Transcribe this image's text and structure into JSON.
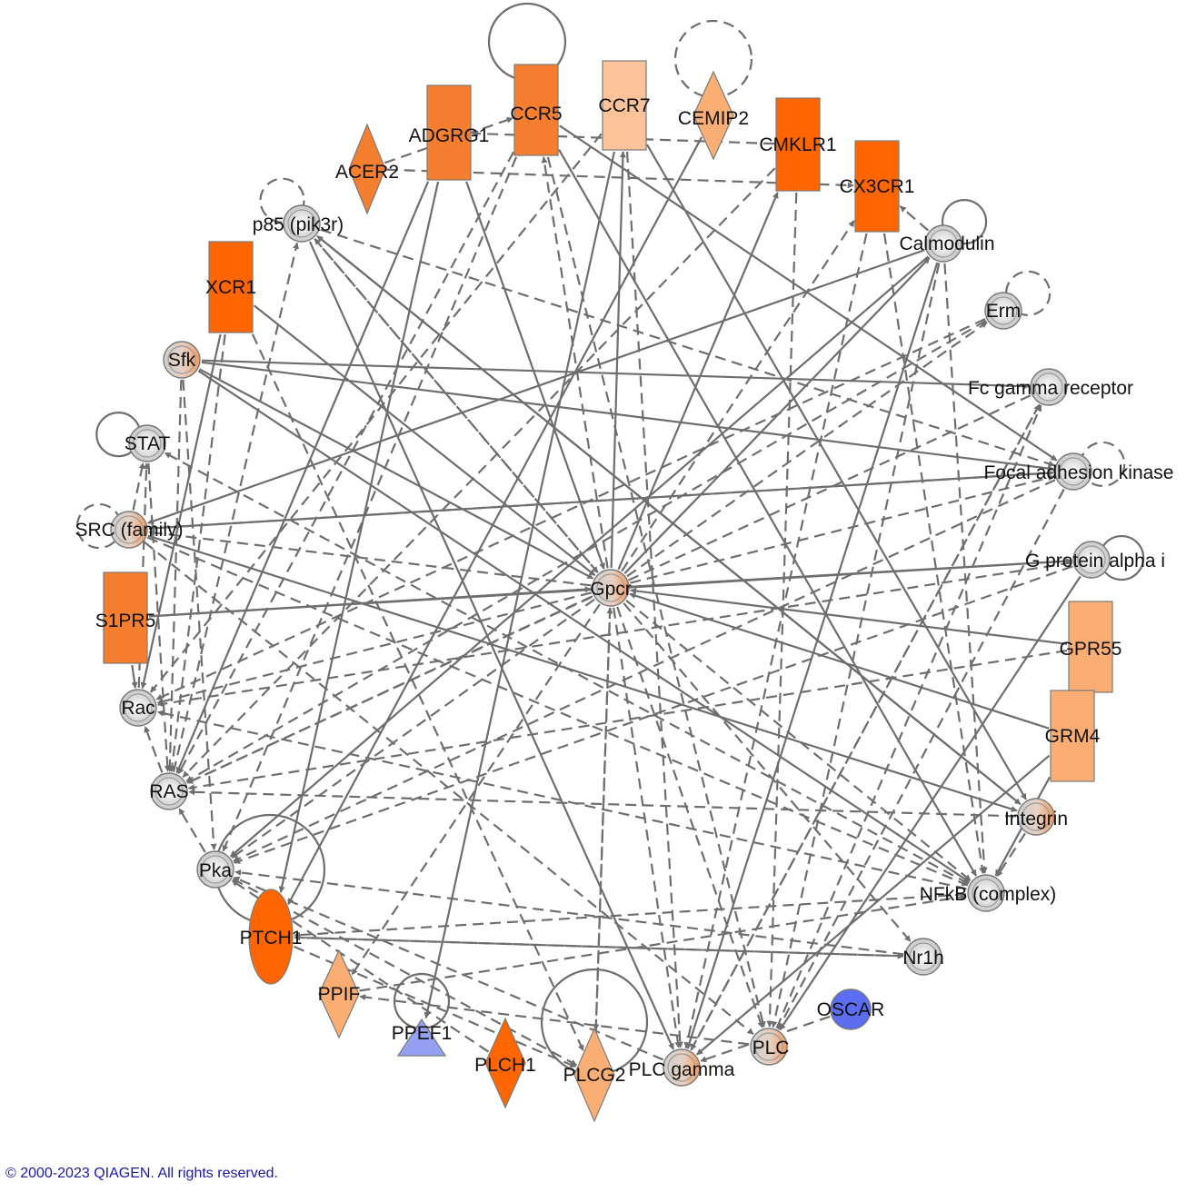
{
  "network": {
    "colors": {
      "edge": "#6e6e6e",
      "arrow": "#6e6e6e",
      "outline": "#7a7a7a",
      "gray_fill": "#d8d8d8",
      "strong_up": "#ff6600",
      "mid_up": "#f57f2e",
      "light_up": "#fbae73",
      "very_light_up": "#fcc39a",
      "down": "#5b6df0",
      "light_down": "#94a0f2"
    },
    "nodes": [
      {
        "id": "ccr5",
        "label": "CCR5",
        "shape": "rect",
        "color": "mid_up"
      },
      {
        "id": "ccr7",
        "label": "CCR7",
        "shape": "rect",
        "color": "very_light_up"
      },
      {
        "id": "cemip2",
        "label": "CEMIP2",
        "shape": "diamond",
        "color": "light_up"
      },
      {
        "id": "adgrg1",
        "label": "ADGRG1",
        "shape": "rect",
        "color": "mid_up"
      },
      {
        "id": "acer2",
        "label": "ACER2",
        "shape": "diamond",
        "color": "mid_up"
      },
      {
        "id": "cmklr1",
        "label": "CMKLR1",
        "shape": "rect",
        "color": "strong_up"
      },
      {
        "id": "cx3cr1",
        "label": "CX3CR1",
        "shape": "rect",
        "color": "strong_up"
      },
      {
        "id": "p85",
        "label": "p85 (pik3r)",
        "shape": "circle",
        "color": "gray"
      },
      {
        "id": "calmodulin",
        "label": "Calmodulin",
        "shape": "circle",
        "color": "gray"
      },
      {
        "id": "xcr1",
        "label": "XCR1",
        "shape": "rect",
        "color": "strong_up"
      },
      {
        "id": "erm",
        "label": "Erm",
        "shape": "circle",
        "color": "gray"
      },
      {
        "id": "sfk",
        "label": "Sfk",
        "shape": "circle",
        "color": "gradient"
      },
      {
        "id": "fcgr",
        "label": "Fc gamma receptor",
        "shape": "circle",
        "color": "gray"
      },
      {
        "id": "stat",
        "label": "STAT",
        "shape": "circle",
        "color": "gray"
      },
      {
        "id": "fak",
        "label": "Focal adhesion kinase",
        "shape": "circle",
        "color": "gray"
      },
      {
        "id": "src",
        "label": "SRC (family)",
        "shape": "circle",
        "color": "gradient"
      },
      {
        "id": "gpai",
        "label": "G protein alpha i",
        "shape": "circle",
        "color": "gray"
      },
      {
        "id": "gpcr",
        "label": "Gpcr",
        "shape": "circle",
        "color": "gradient"
      },
      {
        "id": "s1pr5",
        "label": "S1PR5",
        "shape": "rect",
        "color": "mid_up"
      },
      {
        "id": "gpr55",
        "label": "GPR55",
        "shape": "rect",
        "color": "light_up"
      },
      {
        "id": "rac",
        "label": "Rac",
        "shape": "circle",
        "color": "gray"
      },
      {
        "id": "grm4",
        "label": "GRM4",
        "shape": "rect",
        "color": "light_up"
      },
      {
        "id": "ras",
        "label": "RAS",
        "shape": "circle",
        "color": "gray"
      },
      {
        "id": "integrin",
        "label": "Integrin",
        "shape": "circle",
        "color": "gradient"
      },
      {
        "id": "pka",
        "label": "Pka",
        "shape": "circle",
        "color": "gray"
      },
      {
        "id": "nfkb",
        "label": "NFkB (complex)",
        "shape": "circle",
        "color": "gray"
      },
      {
        "id": "ptch1",
        "label": "PTCH1",
        "shape": "ellipse",
        "color": "strong_up"
      },
      {
        "id": "nr1h",
        "label": "Nr1h",
        "shape": "circle",
        "color": "gray"
      },
      {
        "id": "ppif",
        "label": "PPIF",
        "shape": "diamond",
        "color": "light_up"
      },
      {
        "id": "oscar",
        "label": "OSCAR",
        "shape": "circle",
        "color": "down"
      },
      {
        "id": "ppef1",
        "label": "PPEF1",
        "shape": "triangle",
        "color": "light_down"
      },
      {
        "id": "plch1",
        "label": "PLCH1",
        "shape": "diamond",
        "color": "strong_up"
      },
      {
        "id": "plcg2",
        "label": "PLCG2",
        "shape": "diamond",
        "color": "light_up"
      },
      {
        "id": "plcgamma",
        "label": "PLC gamma",
        "shape": "circle",
        "color": "gradient"
      },
      {
        "id": "plc",
        "label": "PLC",
        "shape": "circle",
        "color": "gradient"
      }
    ],
    "self_loops": [
      {
        "node": "ccr5",
        "dashed": false
      },
      {
        "node": "cemip2",
        "dashed": true
      },
      {
        "node": "p85",
        "dashed": true
      },
      {
        "node": "calmodulin",
        "dashed": false
      },
      {
        "node": "erm",
        "dashed": true
      },
      {
        "node": "stat",
        "dashed": false
      },
      {
        "node": "src",
        "dashed": true
      },
      {
        "node": "fak",
        "dashed": true
      },
      {
        "node": "gpai",
        "dashed": false
      },
      {
        "node": "pka",
        "dashed": false
      },
      {
        "node": "ppef1",
        "dashed": false
      },
      {
        "node": "plcg2",
        "dashed": false
      }
    ],
    "edges": [
      {
        "from": "gpcr",
        "to": "ccr5",
        "dashed": true
      },
      {
        "from": "gpcr",
        "to": "ccr7",
        "dashed": false
      },
      {
        "from": "gpcr",
        "to": "cmklr1",
        "dashed": false
      },
      {
        "from": "gpcr",
        "to": "cx3cr1",
        "dashed": true
      },
      {
        "from": "gpcr",
        "to": "calmodulin",
        "dashed": false
      },
      {
        "from": "gpcr",
        "to": "p85",
        "dashed": true
      },
      {
        "from": "gpcr",
        "to": "gpai",
        "dashed": false
      },
      {
        "from": "gpcr",
        "to": "fak",
        "dashed": true
      },
      {
        "from": "gpcr",
        "to": "rac",
        "dashed": true
      },
      {
        "from": "gpcr",
        "to": "ras",
        "dashed": true
      },
      {
        "from": "gpcr",
        "to": "pka",
        "dashed": true
      },
      {
        "from": "gpcr",
        "to": "plcg2",
        "dashed": true
      },
      {
        "from": "gpcr",
        "to": "plcgamma",
        "dashed": true
      },
      {
        "from": "gpcr",
        "to": "plc",
        "dashed": true
      },
      {
        "from": "gpcr",
        "to": "nfkb",
        "dashed": true
      },
      {
        "from": "gpcr",
        "to": "ppif",
        "dashed": true
      },
      {
        "from": "gpcr",
        "to": "erm",
        "dashed": true
      },
      {
        "from": "gpcr",
        "to": "nr1h",
        "dashed": true
      },
      {
        "from": "gpcr",
        "to": "src",
        "dashed": true
      },
      {
        "from": "sfk",
        "to": "gpcr",
        "dashed": false
      },
      {
        "from": "s1pr5",
        "to": "gpcr",
        "dashed": false
      },
      {
        "from": "gpr55",
        "to": "gpcr",
        "dashed": false
      },
      {
        "from": "grm4",
        "to": "gpcr",
        "dashed": false
      },
      {
        "from": "xcr1",
        "to": "gpcr",
        "dashed": false
      },
      {
        "from": "adgrg1",
        "to": "gpcr",
        "dashed": false
      },
      {
        "from": "p85",
        "to": "integrin",
        "dashed": false
      },
      {
        "from": "p85",
        "to": "fak",
        "dashed": true
      },
      {
        "from": "p85",
        "to": "gpcr",
        "dashed": true
      },
      {
        "from": "p85",
        "to": "plcgamma",
        "dashed": false
      },
      {
        "from": "sfk",
        "to": "fcgr",
        "dashed": false
      },
      {
        "from": "sfk",
        "to": "fak",
        "dashed": false
      },
      {
        "from": "sfk",
        "to": "nfkb",
        "dashed": false
      },
      {
        "from": "sfk",
        "to": "pka",
        "dashed": true
      },
      {
        "from": "src",
        "to": "fak",
        "dashed": false
      },
      {
        "from": "src",
        "to": "integrin",
        "dashed": false
      },
      {
        "from": "src",
        "to": "nfkb",
        "dashed": true
      },
      {
        "from": "src",
        "to": "plc",
        "dashed": true
      },
      {
        "from": "src",
        "to": "stat",
        "dashed": true
      },
      {
        "from": "s1pr5",
        "to": "gpai",
        "dashed": false
      },
      {
        "from": "s1pr5",
        "to": "rac",
        "dashed": false
      },
      {
        "from": "xcr1",
        "to": "rac",
        "dashed": false
      },
      {
        "from": "xcr1",
        "to": "ras",
        "dashed": true
      },
      {
        "from": "calmodulin",
        "to": "pka",
        "dashed": false
      },
      {
        "from": "calmodulin",
        "to": "src",
        "dashed": false
      },
      {
        "from": "calmodulin",
        "to": "plc",
        "dashed": true
      },
      {
        "from": "calmodulin",
        "to": "nfkb",
        "dashed": true
      },
      {
        "from": "calmodulin",
        "to": "plcgamma",
        "dashed": false
      },
      {
        "from": "calmodulin",
        "to": "cx3cr1",
        "dashed": true
      },
      {
        "from": "ccr5",
        "to": "fak",
        "dashed": false
      },
      {
        "from": "ccr5",
        "to": "plc",
        "dashed": true
      },
      {
        "from": "ccr5",
        "to": "nfkb",
        "dashed": false
      },
      {
        "from": "ccr5",
        "to": "ras",
        "dashed": true
      },
      {
        "from": "ccr5",
        "to": "pka",
        "dashed": true
      },
      {
        "from": "ccr7",
        "to": "plcgamma",
        "dashed": true
      },
      {
        "from": "ccr7",
        "to": "integrin",
        "dashed": false
      },
      {
        "from": "ccr7",
        "to": "rac",
        "dashed": true
      },
      {
        "from": "ccr7",
        "to": "ppef1",
        "dashed": false
      },
      {
        "from": "cemip2",
        "to": "ptch1",
        "dashed": false
      },
      {
        "from": "acer2",
        "to": "cx3cr1",
        "dashed": true
      },
      {
        "from": "acer2",
        "to": "ccr5",
        "dashed": true
      },
      {
        "from": "adgrg1",
        "to": "ras",
        "dashed": false
      },
      {
        "from": "adgrg1",
        "to": "ptch1",
        "dashed": false
      },
      {
        "from": "cmklr1",
        "to": "ras",
        "dashed": true
      },
      {
        "from": "cmklr1",
        "to": "plc",
        "dashed": true
      },
      {
        "from": "cx3cr1",
        "to": "plcgamma",
        "dashed": true
      },
      {
        "from": "cx3cr1",
        "to": "nfkb",
        "dashed": true
      },
      {
        "from": "erm",
        "to": "rac",
        "dashed": true
      },
      {
        "from": "fcgr",
        "to": "plcgamma",
        "dashed": true
      },
      {
        "from": "fcgr",
        "to": "ras",
        "dashed": true
      },
      {
        "from": "fak",
        "to": "pka",
        "dashed": true
      },
      {
        "from": "fak",
        "to": "plc",
        "dashed": true
      },
      {
        "from": "gpai",
        "to": "pka",
        "dashed": true
      },
      {
        "from": "gpai",
        "to": "rac",
        "dashed": true
      },
      {
        "from": "gpai",
        "to": "plc",
        "dashed": false
      },
      {
        "from": "gpr55",
        "to": "ras",
        "dashed": true
      },
      {
        "from": "grm4",
        "to": "nfkb",
        "dashed": false
      },
      {
        "from": "grm4",
        "to": "plcgamma",
        "dashed": false
      },
      {
        "from": "integrin",
        "to": "ras",
        "dashed": true
      },
      {
        "from": "integrin",
        "to": "p85",
        "dashed": false
      },
      {
        "from": "integrin",
        "to": "nfkb",
        "dashed": true
      },
      {
        "from": "nfkb",
        "to": "ptch1",
        "dashed": true
      },
      {
        "from": "nfkb",
        "to": "rac",
        "dashed": true
      },
      {
        "from": "nfkb",
        "to": "stat",
        "dashed": true
      },
      {
        "from": "nr1h",
        "to": "pka",
        "dashed": true
      },
      {
        "from": "nr1h",
        "to": "ptch1",
        "dashed": true
      },
      {
        "from": "ptch1",
        "to": "nr1h",
        "dashed": true
      },
      {
        "from": "ptch1",
        "to": "plcg2",
        "dashed": true
      },
      {
        "from": "ppif",
        "to": "nfkb",
        "dashed": true
      },
      {
        "from": "plcgamma",
        "to": "fcgr",
        "dashed": true
      },
      {
        "from": "plcgamma",
        "to": "pka",
        "dashed": true
      },
      {
        "from": "plc",
        "to": "ppif",
        "dashed": true
      },
      {
        "from": "plc",
        "to": "fcgr",
        "dashed": true
      },
      {
        "from": "oscar",
        "to": "plcgamma",
        "dashed": true
      },
      {
        "from": "plch1",
        "to": "pka",
        "dashed": true
      },
      {
        "from": "rac",
        "to": "stat",
        "dashed": true
      },
      {
        "from": "ras",
        "to": "rac",
        "dashed": true
      },
      {
        "from": "ras",
        "to": "p85",
        "dashed": true
      },
      {
        "from": "stat",
        "to": "ras",
        "dashed": true
      },
      {
        "from": "pka",
        "to": "plcg2",
        "dashed": true
      },
      {
        "from": "pka",
        "to": "ras",
        "dashed": true
      },
      {
        "from": "xcr1",
        "to": "plcg2",
        "dashed": true
      },
      {
        "from": "sfk",
        "to": "ras",
        "dashed": true
      },
      {
        "from": "plcg2",
        "to": "gpcr",
        "dashed": true
      },
      {
        "from": "fak",
        "to": "src",
        "dashed": true
      },
      {
        "from": "erm",
        "to": "ras",
        "dashed": true
      },
      {
        "from": "cmklr1",
        "to": "adgrg1",
        "dashed": true
      }
    ]
  },
  "footer": {
    "copyright": "© 2000-2023 QIAGEN. All rights reserved."
  }
}
